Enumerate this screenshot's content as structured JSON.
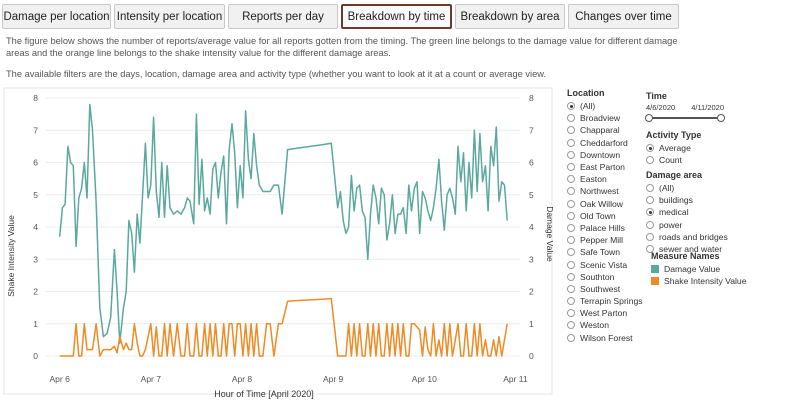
{
  "tabs": [
    {
      "label": "Damage per location",
      "active": false
    },
    {
      "label": "Intensity per location",
      "active": false
    },
    {
      "label": "Reports per day",
      "active": false
    },
    {
      "label": "Breakdown by time",
      "active": true
    },
    {
      "label": "Breakdown by area",
      "active": false
    },
    {
      "label": "Changes over time",
      "active": false
    }
  ],
  "description": {
    "para1": "The figure below shows the number of reports/average value for all reports gotten from the timing. The green line belongs to the damage value for different damage areas and the orange line belongs to the shake intensity value for the different damage areas.",
    "para2": "The available filters are the days, location, damage area and activity type (whether you want to look at it at a count or average view."
  },
  "filters": {
    "location": {
      "title": "Location",
      "options": [
        "(All)",
        "Broadview",
        "Chapparal",
        "Cheddarford",
        "Downtown",
        "East Parton",
        "Easton",
        "Northwest",
        "Oak Willow",
        "Old Town",
        "Palace Hills",
        "Pepper Mill",
        "Safe Town",
        "Scenic Vista",
        "Southton",
        "Southwest",
        "Terrapin Springs",
        "West Parton",
        "Weston",
        "Wilson Forest"
      ],
      "selected": "(All)"
    },
    "time": {
      "title": "Time",
      "start": "4/6/2020",
      "end": "4/11/2020"
    },
    "activity_type": {
      "title": "Activity Type",
      "options": [
        "Average",
        "Count"
      ],
      "selected": "Average"
    },
    "damage_area": {
      "title": "Damage area",
      "options": [
        "(All)",
        "buildings",
        "medical",
        "power",
        "roads and bridges",
        "sewer and water"
      ],
      "selected": "medical"
    },
    "measure_names": {
      "title": "Measure Names",
      "items": [
        {
          "label": "Damage Value",
          "color": "#5ba89e"
        },
        {
          "label": "Shake Intensity Value",
          "color": "#ef8a24"
        }
      ]
    }
  },
  "chart_data": {
    "type": "line",
    "xlabel": "Hour of Time [April 2020]",
    "ylabel_left": "Shake Intensity Value",
    "ylabel_right": "Damage Value",
    "x_ticks": [
      "Apr 6",
      "Apr 7",
      "Apr 8",
      "Apr 9",
      "Apr 10",
      "Apr 11"
    ],
    "x_range_days": [
      5.85,
      11.05
    ],
    "ylim": [
      0,
      8
    ],
    "y_ticks": [
      0,
      1,
      2,
      3,
      4,
      5,
      6,
      7,
      8
    ],
    "series": [
      {
        "name": "Damage Value",
        "color": "#5ba89e",
        "points": [
          [
            6.0,
            3.7
          ],
          [
            6.03,
            4.6
          ],
          [
            6.06,
            4.7
          ],
          [
            6.09,
            6.5
          ],
          [
            6.12,
            6.0
          ],
          [
            6.15,
            5.9
          ],
          [
            6.18,
            3.4
          ],
          [
            6.21,
            4.9
          ],
          [
            6.24,
            5.2
          ],
          [
            6.27,
            6.0
          ],
          [
            6.3,
            4.9
          ],
          [
            6.33,
            7.8
          ],
          [
            6.36,
            7.0
          ],
          [
            6.4,
            4.8
          ],
          [
            6.44,
            1.5
          ],
          [
            6.48,
            0.6
          ],
          [
            6.52,
            0.7
          ],
          [
            6.56,
            1.2
          ],
          [
            6.6,
            3.3
          ],
          [
            6.63,
            2.0
          ],
          [
            6.66,
            0.4
          ],
          [
            6.7,
            1.5
          ],
          [
            6.73,
            2.0
          ],
          [
            6.76,
            4.2
          ],
          [
            6.79,
            3.8
          ],
          [
            6.82,
            2.6
          ],
          [
            6.85,
            4.4
          ],
          [
            6.88,
            3.5
          ],
          [
            6.91,
            5.0
          ],
          [
            6.94,
            6.6
          ],
          [
            6.97,
            4.9
          ],
          [
            7.0,
            5.3
          ],
          [
            7.03,
            7.4
          ],
          [
            7.06,
            5.1
          ],
          [
            7.09,
            4.3
          ],
          [
            7.12,
            6.0
          ],
          [
            7.15,
            4.3
          ],
          [
            7.18,
            5.9
          ],
          [
            7.21,
            4.6
          ],
          [
            7.25,
            4.4
          ],
          [
            7.29,
            4.5
          ],
          [
            7.33,
            4.4
          ],
          [
            7.37,
            4.6
          ],
          [
            7.4,
            4.9
          ],
          [
            7.43,
            4.8
          ],
          [
            7.47,
            4.1
          ],
          [
            7.5,
            7.5
          ],
          [
            7.53,
            4.7
          ],
          [
            7.56,
            6.1
          ],
          [
            7.59,
            4.5
          ],
          [
            7.62,
            4.9
          ],
          [
            7.65,
            4.4
          ],
          [
            7.68,
            5.8
          ],
          [
            7.71,
            6.0
          ],
          [
            7.74,
            4.9
          ],
          [
            7.77,
            5.7
          ],
          [
            7.8,
            6.2
          ],
          [
            7.83,
            4.1
          ],
          [
            7.86,
            6.4
          ],
          [
            7.89,
            7.2
          ],
          [
            7.92,
            6.3
          ],
          [
            7.95,
            4.6
          ],
          [
            7.98,
            5.9
          ],
          [
            8.01,
            4.9
          ],
          [
            8.04,
            7.6
          ],
          [
            8.07,
            6.1
          ],
          [
            8.1,
            5.5
          ],
          [
            8.13,
            6.9
          ],
          [
            8.16,
            5.9
          ],
          [
            8.19,
            5.3
          ],
          [
            8.23,
            5.1
          ],
          [
            8.27,
            5.1
          ],
          [
            8.31,
            5.1
          ],
          [
            8.35,
            5.3
          ],
          [
            8.4,
            5.3
          ],
          [
            8.44,
            4.4
          ],
          [
            8.5,
            6.4
          ],
          [
            8.62,
            6.45
          ],
          [
            8.75,
            6.5
          ],
          [
            8.88,
            6.55
          ],
          [
            8.98,
            6.6
          ],
          [
            9.05,
            4.6
          ],
          [
            9.08,
            5.1
          ],
          [
            9.11,
            4.2
          ],
          [
            9.14,
            3.8
          ],
          [
            9.17,
            4.0
          ],
          [
            9.2,
            5.6
          ],
          [
            9.23,
            4.5
          ],
          [
            9.26,
            5.2
          ],
          [
            9.29,
            5.3
          ],
          [
            9.32,
            4.5
          ],
          [
            9.35,
            4.3
          ],
          [
            9.38,
            3.0
          ],
          [
            9.41,
            4.4
          ],
          [
            9.44,
            5.3
          ],
          [
            9.47,
            4.9
          ],
          [
            9.5,
            4.1
          ],
          [
            9.53,
            5.2
          ],
          [
            9.56,
            5.0
          ],
          [
            9.59,
            3.6
          ],
          [
            9.62,
            4.1
          ],
          [
            9.65,
            5.0
          ],
          [
            9.68,
            3.8
          ],
          [
            9.71,
            4.4
          ],
          [
            9.74,
            4.4
          ],
          [
            9.77,
            4.6
          ],
          [
            9.8,
            3.8
          ],
          [
            9.83,
            5.3
          ],
          [
            9.86,
            4.5
          ],
          [
            9.89,
            5.2
          ],
          [
            9.92,
            5.4
          ],
          [
            9.95,
            3.8
          ],
          [
            9.98,
            5.1
          ],
          [
            10.01,
            4.9
          ],
          [
            10.04,
            4.5
          ],
          [
            10.07,
            4.2
          ],
          [
            10.1,
            4.6
          ],
          [
            10.13,
            5.2
          ],
          [
            10.16,
            6.1
          ],
          [
            10.19,
            4.8
          ],
          [
            10.22,
            3.9
          ],
          [
            10.25,
            5.0
          ],
          [
            10.28,
            5.2
          ],
          [
            10.31,
            4.9
          ],
          [
            10.34,
            4.4
          ],
          [
            10.37,
            6.5
          ],
          [
            10.4,
            5.4
          ],
          [
            10.43,
            6.3
          ],
          [
            10.46,
            4.5
          ],
          [
            10.49,
            6.0
          ],
          [
            10.52,
            4.9
          ],
          [
            10.55,
            7.0
          ],
          [
            10.58,
            5.1
          ],
          [
            10.61,
            6.9
          ],
          [
            10.64,
            5.4
          ],
          [
            10.67,
            5.9
          ],
          [
            10.7,
            4.5
          ],
          [
            10.73,
            6.5
          ],
          [
            10.76,
            5.9
          ],
          [
            10.79,
            7.1
          ],
          [
            10.82,
            4.8
          ],
          [
            10.85,
            5.4
          ],
          [
            10.88,
            5.3
          ],
          [
            10.91,
            4.2
          ]
        ]
      },
      {
        "name": "Shake Intensity Value",
        "color": "#ef8a24",
        "points": [
          [
            6.0,
            0.0
          ],
          [
            6.05,
            0.0
          ],
          [
            6.1,
            0.0
          ],
          [
            6.15,
            0.0
          ],
          [
            6.18,
            1.0
          ],
          [
            6.21,
            0.0
          ],
          [
            6.24,
            0.0
          ],
          [
            6.27,
            1.0
          ],
          [
            6.3,
            0.2
          ],
          [
            6.33,
            0.2
          ],
          [
            6.36,
            0.2
          ],
          [
            6.4,
            1.0
          ],
          [
            6.44,
            0.0
          ],
          [
            6.48,
            0.2
          ],
          [
            6.52,
            0.2
          ],
          [
            6.56,
            0.2
          ],
          [
            6.6,
            0.3
          ],
          [
            6.63,
            0.1
          ],
          [
            6.66,
            0.6
          ],
          [
            6.7,
            0.2
          ],
          [
            6.73,
            0.4
          ],
          [
            6.76,
            0.2
          ],
          [
            6.79,
            0.2
          ],
          [
            6.82,
            1.0
          ],
          [
            6.85,
            0.4
          ],
          [
            6.88,
            0.0
          ],
          [
            6.91,
            0.0
          ],
          [
            6.94,
            0.2
          ],
          [
            6.97,
            0.6
          ],
          [
            7.0,
            1.0
          ],
          [
            7.03,
            0.0
          ],
          [
            7.06,
            0.9
          ],
          [
            7.09,
            0.0
          ],
          [
            7.12,
            0.0
          ],
          [
            7.15,
            1.0
          ],
          [
            7.18,
            0.0
          ],
          [
            7.21,
            1.0
          ],
          [
            7.25,
            0.0
          ],
          [
            7.29,
            1.0
          ],
          [
            7.33,
            0.0
          ],
          [
            7.37,
            0.0
          ],
          [
            7.4,
            1.0
          ],
          [
            7.43,
            0.0
          ],
          [
            7.47,
            0.0
          ],
          [
            7.5,
            1.0
          ],
          [
            7.53,
            0.0
          ],
          [
            7.56,
            0.0
          ],
          [
            7.59,
            1.0
          ],
          [
            7.62,
            0.0
          ],
          [
            7.65,
            1.0
          ],
          [
            7.68,
            0.0
          ],
          [
            7.71,
            1.0
          ],
          [
            7.74,
            0.0
          ],
          [
            7.77,
            0.0
          ],
          [
            7.8,
            1.0
          ],
          [
            7.83,
            0.0
          ],
          [
            7.86,
            1.0
          ],
          [
            7.89,
            1.0
          ],
          [
            7.92,
            0.0
          ],
          [
            7.95,
            1.0
          ],
          [
            7.98,
            1.0
          ],
          [
            8.01,
            0.0
          ],
          [
            8.04,
            1.0
          ],
          [
            8.07,
            0.0
          ],
          [
            8.1,
            1.0
          ],
          [
            8.13,
            0.0
          ],
          [
            8.16,
            1.0
          ],
          [
            8.19,
            0.0
          ],
          [
            8.23,
            0.0
          ],
          [
            8.27,
            1.0
          ],
          [
            8.31,
            1.0
          ],
          [
            8.35,
            0.0
          ],
          [
            8.4,
            1.0
          ],
          [
            8.44,
            1.0
          ],
          [
            8.5,
            1.7
          ],
          [
            8.62,
            1.72
          ],
          [
            8.75,
            1.74
          ],
          [
            8.88,
            1.76
          ],
          [
            8.98,
            1.78
          ],
          [
            9.05,
            0.0
          ],
          [
            9.08,
            0.0
          ],
          [
            9.11,
            0.0
          ],
          [
            9.14,
            0.0
          ],
          [
            9.17,
            1.0
          ],
          [
            9.2,
            0.0
          ],
          [
            9.23,
            1.0
          ],
          [
            9.26,
            0.0
          ],
          [
            9.29,
            1.0
          ],
          [
            9.32,
            0.0
          ],
          [
            9.35,
            0.0
          ],
          [
            9.38,
            1.0
          ],
          [
            9.41,
            0.0
          ],
          [
            9.44,
            1.0
          ],
          [
            9.47,
            0.0
          ],
          [
            9.5,
            1.0
          ],
          [
            9.53,
            0.0
          ],
          [
            9.56,
            0.0
          ],
          [
            9.59,
            1.0
          ],
          [
            9.62,
            0.0
          ],
          [
            9.65,
            1.0
          ],
          [
            9.68,
            0.0
          ],
          [
            9.71,
            1.0
          ],
          [
            9.74,
            0.0
          ],
          [
            9.77,
            1.0
          ],
          [
            9.8,
            0.0
          ],
          [
            9.83,
            0.0
          ],
          [
            9.86,
            1.0
          ],
          [
            9.89,
            1.0
          ],
          [
            9.92,
            0.9
          ],
          [
            9.95,
            0.8
          ],
          [
            9.98,
            0.0
          ],
          [
            10.01,
            0.9
          ],
          [
            10.04,
            0.2
          ],
          [
            10.07,
            0.0
          ],
          [
            10.1,
            1.0
          ],
          [
            10.13,
            0.0
          ],
          [
            10.16,
            0.5
          ],
          [
            10.19,
            0.0
          ],
          [
            10.22,
            1.0
          ],
          [
            10.25,
            0.0
          ],
          [
            10.28,
            1.0
          ],
          [
            10.31,
            0.0
          ],
          [
            10.34,
            0.5
          ],
          [
            10.37,
            1.0
          ],
          [
            10.4,
            0.0
          ],
          [
            10.43,
            0.0
          ],
          [
            10.46,
            1.0
          ],
          [
            10.49,
            0.0
          ],
          [
            10.52,
            0.0
          ],
          [
            10.55,
            1.0
          ],
          [
            10.58,
            0.0
          ],
          [
            10.61,
            1.0
          ],
          [
            10.64,
            0.0
          ],
          [
            10.67,
            0.5
          ],
          [
            10.7,
            0.0
          ],
          [
            10.73,
            0.0
          ],
          [
            10.76,
            0.5
          ],
          [
            10.79,
            0.0
          ],
          [
            10.82,
            0.6
          ],
          [
            10.85,
            0.0
          ],
          [
            10.88,
            0.5
          ],
          [
            10.91,
            1.0
          ]
        ]
      }
    ]
  }
}
